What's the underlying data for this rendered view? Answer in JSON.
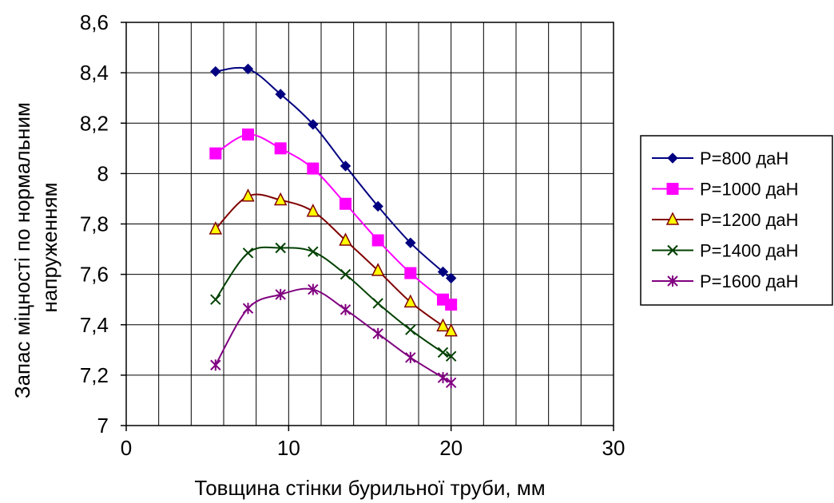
{
  "chart_data": {
    "type": "line",
    "xlabel": "Товщина стінки бурильної труби, мм",
    "ylabel_lines": [
      "Запас міцності по нормальним",
      "напруженням"
    ],
    "xlim": [
      0,
      30
    ],
    "ylim": [
      7,
      8.6
    ],
    "x_gridlines_step": 2,
    "y_gridlines_step": 0.2,
    "x_ticks": [
      0,
      10,
      20,
      30
    ],
    "x_tick_labels": [
      "0",
      "10",
      "20",
      "30"
    ],
    "y_ticks": [
      7,
      7.2,
      7.4,
      7.6,
      7.8,
      8,
      8.2,
      8.4,
      8.6
    ],
    "y_tick_labels": [
      "7",
      "7,2",
      "7,4",
      "7,6",
      "7,8",
      "8",
      "8,2",
      "8,4",
      "8,6"
    ],
    "grid": true,
    "legend_position": "right",
    "x": [
      5.5,
      7.5,
      9.5,
      11.5,
      13.5,
      15.5,
      17.5,
      19.5,
      20
    ],
    "series": [
      {
        "name": "P=800 даН",
        "color": "#000080",
        "marker": "diamond",
        "values": [
          8.405,
          8.415,
          8.315,
          8.195,
          8.03,
          7.87,
          7.725,
          7.61,
          7.585
        ]
      },
      {
        "name": "P=1000 даН",
        "color": "#FF00FF",
        "marker": "square",
        "values": [
          8.08,
          8.155,
          8.1,
          8.02,
          7.88,
          7.735,
          7.605,
          7.5,
          7.48
        ]
      },
      {
        "name": "P=1200 даН",
        "color": "#800000",
        "marker": "triangle",
        "values": [
          7.78,
          7.91,
          7.895,
          7.85,
          7.735,
          7.615,
          7.49,
          7.395,
          7.375
        ]
      },
      {
        "name": "P=1400 даН",
        "color": "#004000",
        "marker": "x",
        "values": [
          7.5,
          7.685,
          7.705,
          7.69,
          7.6,
          7.485,
          7.38,
          7.29,
          7.275
        ]
      },
      {
        "name": "P=1600 даН",
        "color": "#800080",
        "marker": "star",
        "values": [
          7.24,
          7.465,
          7.52,
          7.54,
          7.46,
          7.365,
          7.27,
          7.19,
          7.17
        ]
      }
    ]
  }
}
